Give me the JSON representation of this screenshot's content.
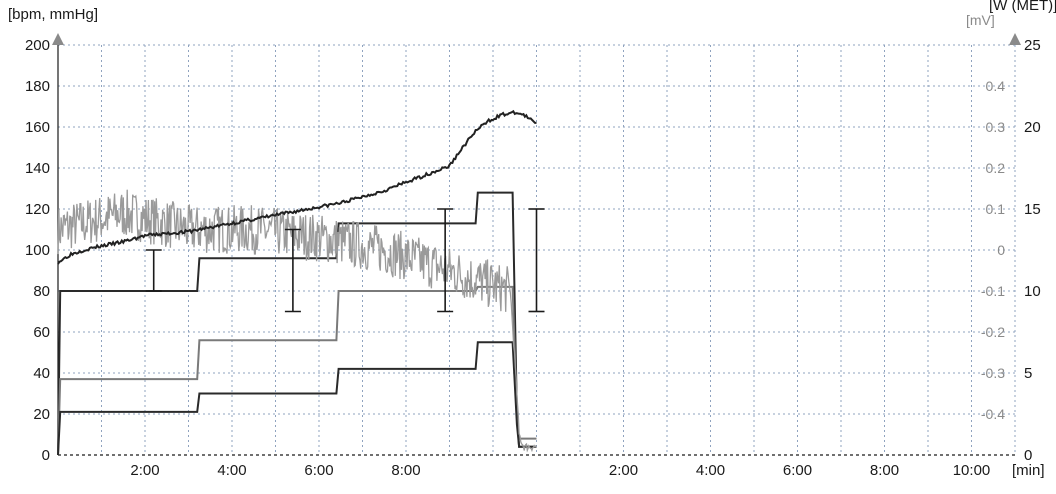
{
  "chart_data": {
    "type": "line",
    "left_axis_label": "[bpm, mmHg]",
    "right_axis_label_mv": "[mV]",
    "right_axis_label_w": "[W (MET)]",
    "x_unit_label": "[min]",
    "y_left": {
      "min": 0,
      "max": 200,
      "ticks": [
        "0",
        "20",
        "40",
        "60",
        "80",
        "100",
        "120",
        "140",
        "160",
        "180",
        "200"
      ]
    },
    "y_mv": {
      "min": -0.5,
      "max": 0.5,
      "ticks": [
        "0.4",
        "0.3",
        "0.2",
        "0.1",
        "0",
        "-0.1",
        "-0.2",
        "-0.3",
        "-0.4"
      ]
    },
    "y_w": {
      "min": 0,
      "max": 25,
      "ticks": [
        "0",
        "5",
        "10",
        "15",
        "20",
        "25"
      ]
    },
    "x_range_min": [
      0,
      22
    ],
    "x_ticks": [
      {
        "label": "2:00",
        "min": 2
      },
      {
        "label": "4:00",
        "min": 4
      },
      {
        "label": "6:00",
        "min": 6
      },
      {
        "label": "8:00",
        "min": 8
      },
      {
        "label": "2:00",
        "min": 13
      },
      {
        "label": "4:00",
        "min": 15
      },
      {
        "label": "6:00",
        "min": 17
      },
      {
        "label": "8:00",
        "min": 19
      },
      {
        "label": "10:00",
        "min": 21
      }
    ],
    "heart_rate_bpm": [
      [
        0,
        94
      ],
      [
        0.3,
        98
      ],
      [
        0.6,
        100
      ],
      [
        1,
        102
      ],
      [
        1.5,
        104
      ],
      [
        2,
        107
      ],
      [
        2.5,
        108
      ],
      [
        3,
        109
      ],
      [
        3.5,
        111
      ],
      [
        4,
        113
      ],
      [
        4.5,
        115
      ],
      [
        5,
        117
      ],
      [
        5.5,
        119
      ],
      [
        6,
        121
      ],
      [
        6.5,
        123
      ],
      [
        7,
        126
      ],
      [
        7.5,
        129
      ],
      [
        8,
        133
      ],
      [
        8.5,
        137
      ],
      [
        9,
        141
      ],
      [
        9.3,
        150
      ],
      [
        9.6,
        158
      ],
      [
        9.9,
        163
      ],
      [
        10.2,
        166
      ],
      [
        10.5,
        167
      ],
      [
        10.7,
        166
      ],
      [
        10.9,
        163
      ],
      [
        11,
        162
      ]
    ],
    "st_level_mv": [
      [
        0,
        0.05
      ],
      [
        1.5,
        0.09
      ],
      [
        3,
        0.05
      ],
      [
        4.5,
        0.05
      ],
      [
        6,
        0.03
      ],
      [
        7.5,
        0.0
      ],
      [
        9,
        -0.05
      ],
      [
        9.8,
        -0.08
      ],
      [
        10.4,
        -0.1
      ],
      [
        10.55,
        -0.35
      ],
      [
        10.6,
        -0.45
      ],
      [
        10.7,
        -0.48
      ],
      [
        11,
        -0.48
      ]
    ],
    "blood_pressure_mmhg": [
      {
        "min": 2.2,
        "systolic": 100,
        "diastolic": 80
      },
      {
        "min": 5.4,
        "systolic": 110,
        "diastolic": 70
      },
      {
        "min": 8.9,
        "systolic": 120,
        "diastolic": 70
      },
      {
        "min": 11.0,
        "systolic": 120,
        "diastolic": 70
      }
    ],
    "steps": [
      {
        "name": "step-80-130",
        "color": "#2a2a2a",
        "points": [
          [
            0,
            0
          ],
          [
            0.05,
            80
          ],
          [
            3.2,
            80
          ],
          [
            3.25,
            96
          ],
          [
            6.4,
            96
          ],
          [
            6.45,
            113
          ],
          [
            9.6,
            113
          ],
          [
            9.65,
            128
          ],
          [
            10.45,
            128
          ],
          [
            10.55,
            20
          ],
          [
            10.6,
            4
          ],
          [
            11,
            4
          ]
        ]
      },
      {
        "name": "step-37-83",
        "color": "#7a7a7a",
        "points": [
          [
            0,
            0
          ],
          [
            0.05,
            37
          ],
          [
            3.2,
            37
          ],
          [
            3.25,
            56
          ],
          [
            6.4,
            56
          ],
          [
            6.45,
            80
          ],
          [
            9.6,
            80
          ],
          [
            9.65,
            82
          ],
          [
            10.45,
            82
          ],
          [
            10.55,
            18
          ],
          [
            10.6,
            8
          ],
          [
            11,
            8
          ]
        ]
      },
      {
        "name": "step-21-56",
        "color": "#2a2a2a",
        "points": [
          [
            0,
            0
          ],
          [
            0.05,
            21
          ],
          [
            3.2,
            21
          ],
          [
            3.25,
            30
          ],
          [
            6.4,
            30
          ],
          [
            6.45,
            42
          ],
          [
            9.6,
            42
          ],
          [
            9.65,
            55
          ],
          [
            10.45,
            55
          ],
          [
            10.55,
            15
          ],
          [
            10.6,
            4
          ],
          [
            11,
            4
          ]
        ]
      }
    ],
    "colors": {
      "hr": "#222222",
      "st": "#9a9a9a",
      "bp": "#1a1a1a",
      "grid": "#8fa3bf",
      "axis": "#1a1a1a",
      "arrow": "#8a8a8a"
    }
  }
}
